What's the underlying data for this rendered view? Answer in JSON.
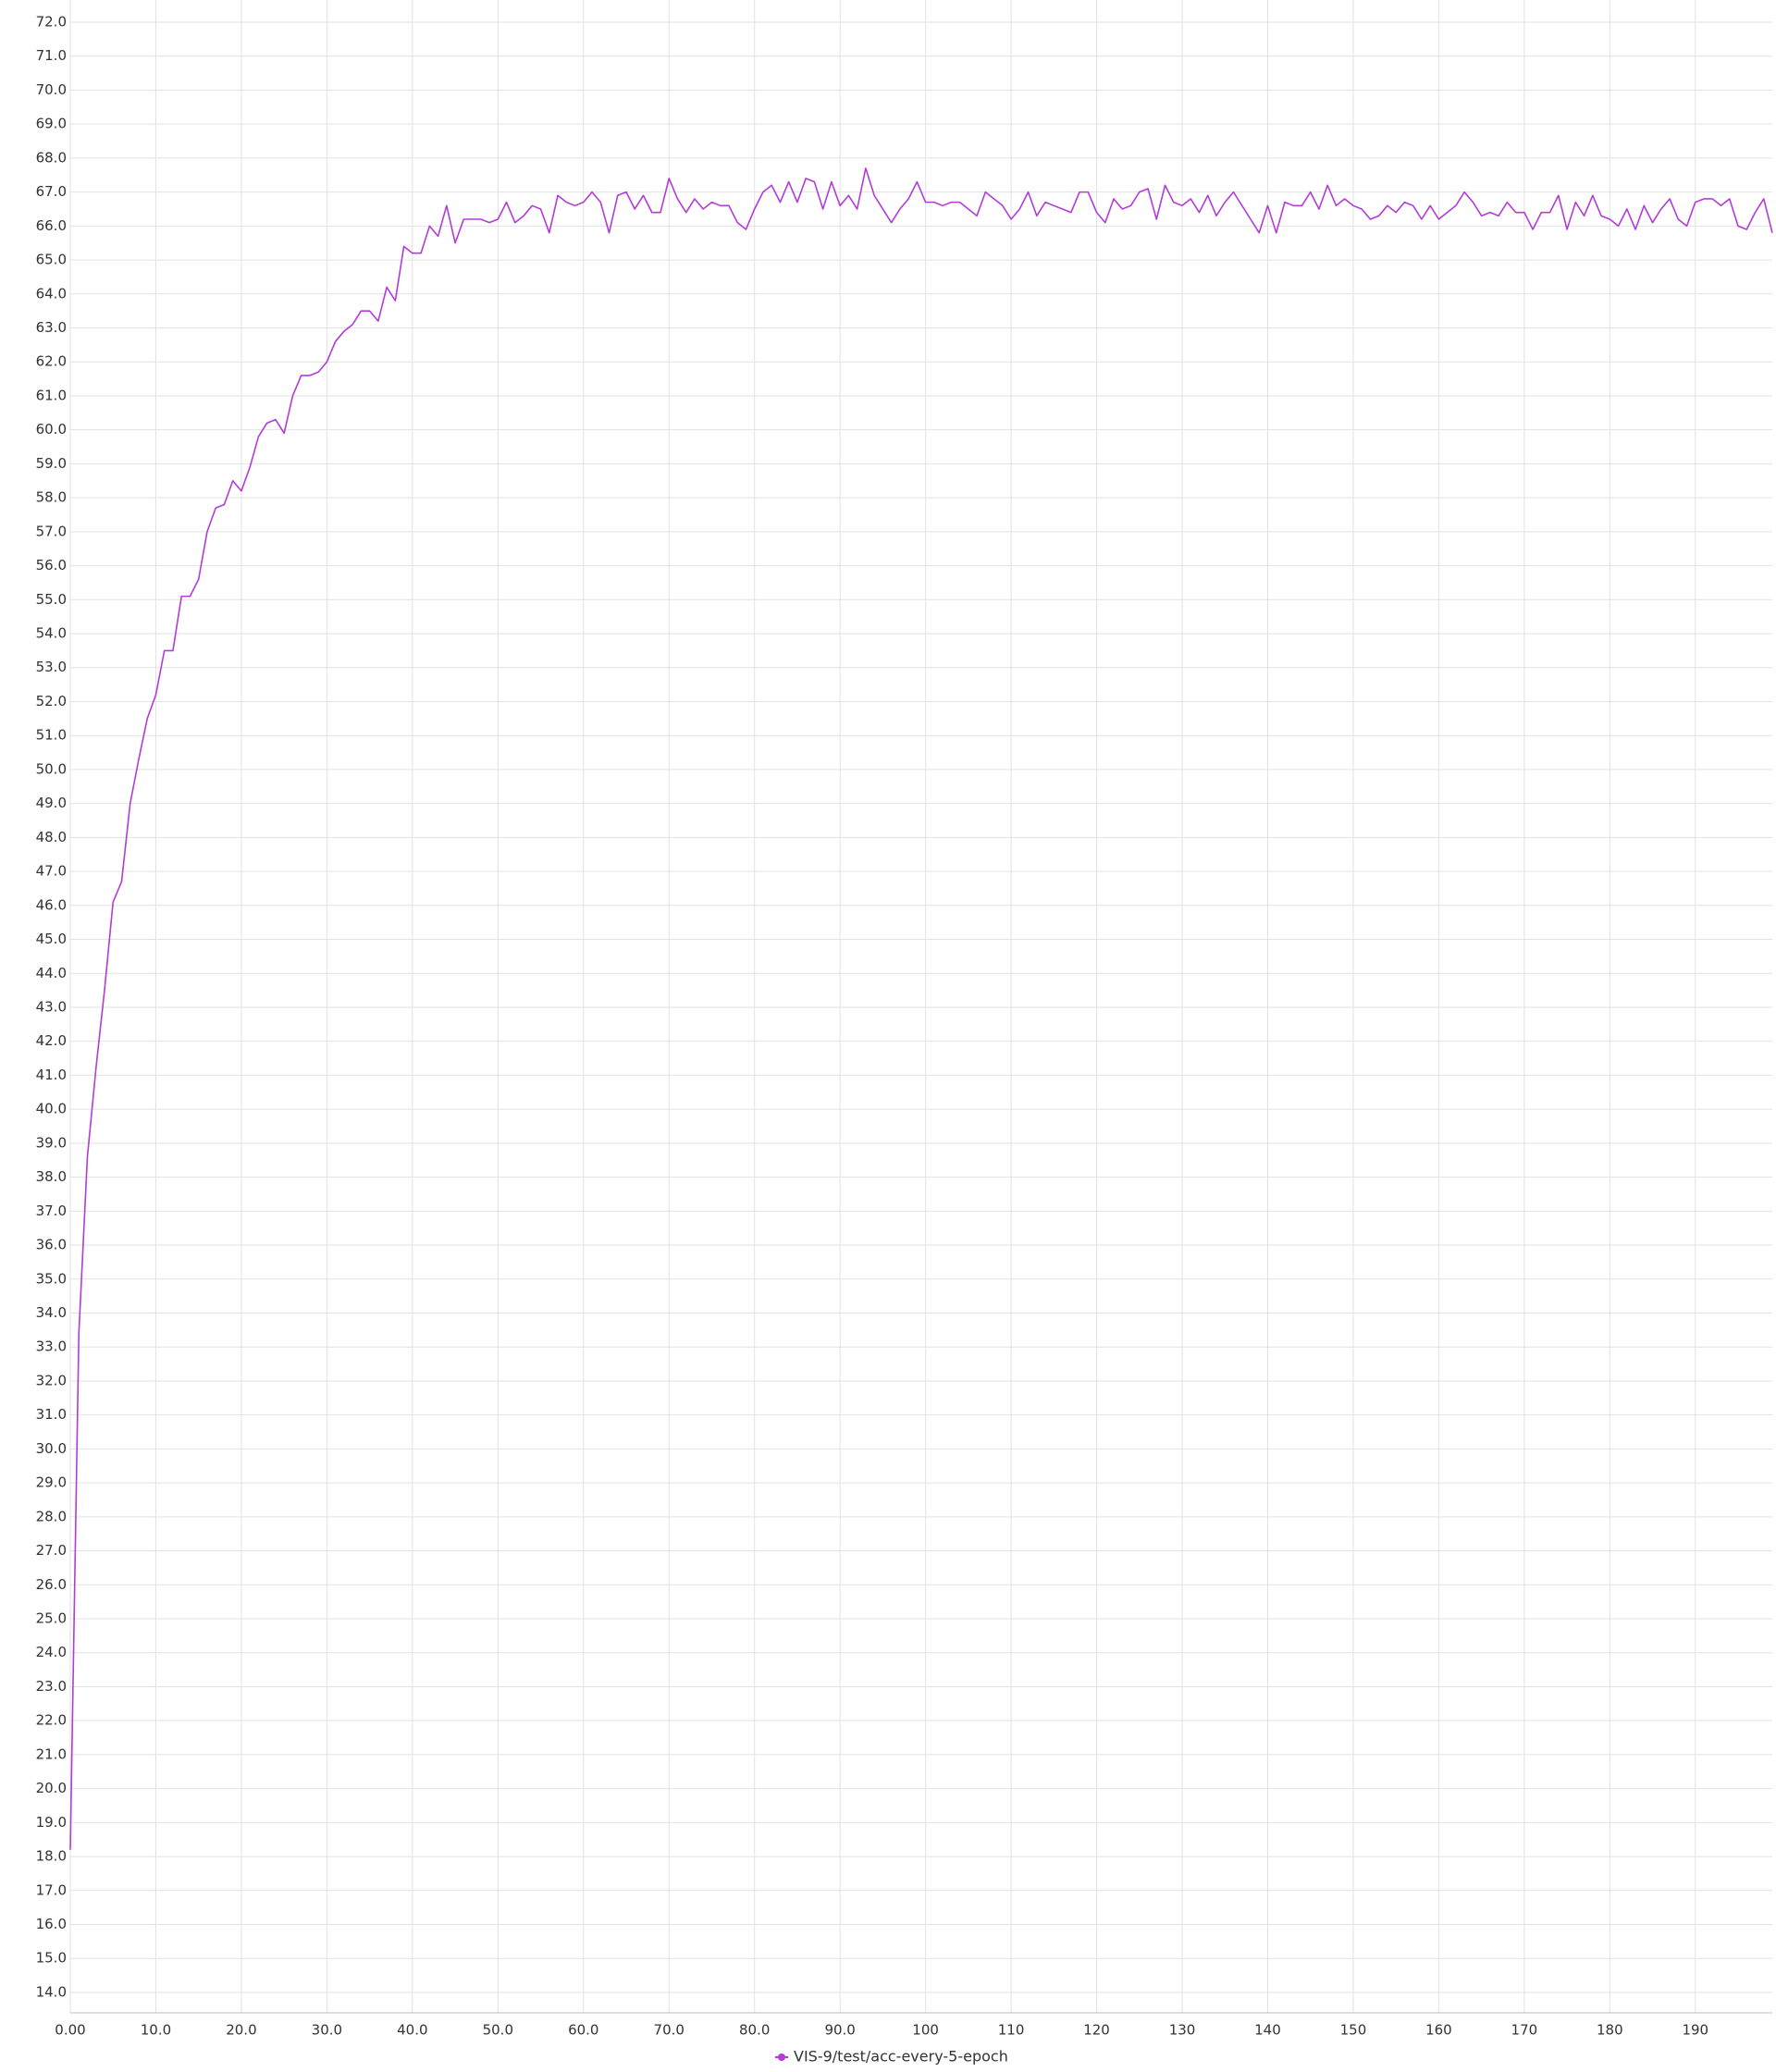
{
  "chart_data": {
    "type": "line",
    "series": [
      {
        "name": "VIS-9/test/acc-every-5-epoch",
        "color": "#b23bd9",
        "values": [
          18.2,
          33.4,
          38.6,
          41.2,
          43.5,
          46.1,
          46.7,
          49.0,
          50.3,
          51.5,
          52.2,
          53.5,
          53.5,
          55.1,
          55.1,
          55.6,
          57.0,
          57.7,
          57.8,
          58.5,
          58.2,
          58.9,
          59.8,
          60.2,
          60.3,
          59.9,
          61.0,
          61.6,
          61.6,
          61.7,
          62.0,
          62.6,
          62.9,
          63.1,
          63.5,
          63.5,
          63.2,
          64.2,
          63.8,
          65.4,
          65.2,
          65.2,
          66.0,
          65.7,
          66.6,
          65.5,
          66.2,
          66.2,
          66.2,
          66.1,
          66.2,
          66.7,
          66.1,
          66.3,
          66.6,
          66.5,
          65.8,
          66.9,
          66.7,
          66.6,
          66.7,
          67.0,
          66.7,
          65.8,
          66.9,
          67.0,
          66.5,
          66.9,
          66.4,
          66.4,
          67.4,
          66.8,
          66.4,
          66.8,
          66.5,
          66.7,
          66.6,
          66.6,
          66.1,
          65.9,
          66.5,
          67.0,
          67.2,
          66.7,
          67.3,
          66.7,
          67.4,
          67.3,
          66.5,
          67.3,
          66.6,
          66.9,
          66.5,
          67.7,
          66.9,
          66.5,
          66.1,
          66.5,
          66.8,
          67.3,
          66.7,
          66.7,
          66.6,
          66.7,
          66.7,
          66.5,
          66.3,
          67.0,
          66.8,
          66.6,
          66.2,
          66.5,
          67.0,
          66.3,
          66.7,
          66.6,
          66.5,
          66.4,
          67.0,
          67.0,
          66.4,
          66.1,
          66.8,
          66.5,
          66.6,
          67.0,
          67.1,
          66.2,
          67.2,
          66.7,
          66.6,
          66.8,
          66.4,
          66.9,
          66.3,
          66.7,
          67.0,
          66.6,
          66.2,
          65.8,
          66.6,
          65.8,
          66.7,
          66.6,
          66.6,
          67.0,
          66.5,
          67.2,
          66.6,
          66.8,
          66.6,
          66.5,
          66.2,
          66.3,
          66.6,
          66.4,
          66.7,
          66.6,
          66.2,
          66.6,
          66.2,
          66.4,
          66.6,
          67.0,
          66.7,
          66.3,
          66.4,
          66.3,
          66.7,
          66.4,
          66.4,
          65.9,
          66.4,
          66.4,
          66.9,
          65.9,
          66.7,
          66.3,
          66.9,
          66.3,
          66.2,
          66.0,
          66.5,
          65.9,
          66.6,
          66.1,
          66.5,
          66.8,
          66.2,
          66.0,
          66.7,
          66.8,
          66.8,
          66.6,
          66.8,
          66.0,
          65.9,
          66.4,
          66.8,
          65.8
        ]
      }
    ],
    "x": [
      0,
      1,
      2,
      3,
      4,
      5,
      6,
      7,
      8,
      9,
      10,
      11,
      12,
      13,
      14,
      15,
      16,
      17,
      18,
      19,
      20,
      21,
      22,
      23,
      24,
      25,
      26,
      27,
      28,
      29,
      30,
      31,
      32,
      33,
      34,
      35,
      36,
      37,
      38,
      39,
      40,
      41,
      42,
      43,
      44,
      45,
      46,
      47,
      48,
      49,
      50,
      51,
      52,
      53,
      54,
      55,
      56,
      57,
      58,
      59,
      60,
      61,
      62,
      63,
      64,
      65,
      66,
      67,
      68,
      69,
      70,
      71,
      72,
      73,
      74,
      75,
      76,
      77,
      78,
      79,
      80,
      81,
      82,
      83,
      84,
      85,
      86,
      87,
      88,
      89,
      90,
      91,
      92,
      93,
      94,
      95,
      96,
      97,
      98,
      99,
      100,
      101,
      102,
      103,
      104,
      105,
      106,
      107,
      108,
      109,
      110,
      111,
      112,
      113,
      114,
      115,
      116,
      117,
      118,
      119,
      120,
      121,
      122,
      123,
      124,
      125,
      126,
      127,
      128,
      129,
      130,
      131,
      132,
      133,
      134,
      135,
      136,
      137,
      138,
      139,
      140,
      141,
      142,
      143,
      144,
      145,
      146,
      147,
      148,
      149,
      150,
      151,
      152,
      153,
      154,
      155,
      156,
      157,
      158,
      159,
      160,
      161,
      162,
      163,
      164,
      165,
      166,
      167,
      168,
      169,
      170,
      171,
      172,
      173,
      174,
      175,
      176,
      177,
      178,
      179,
      180,
      181,
      182,
      183,
      184,
      185,
      186,
      187,
      188,
      189,
      190,
      191,
      192,
      193,
      194,
      195,
      196,
      197,
      198,
      199
    ],
    "xlim": [
      0,
      199
    ],
    "ylim": [
      13.4,
      72
    ],
    "xticks": [
      {
        "value": 0,
        "label": "0.00"
      },
      {
        "value": 10,
        "label": "10.0"
      },
      {
        "value": 20,
        "label": "20.0"
      },
      {
        "value": 30,
        "label": "30.0"
      },
      {
        "value": 40,
        "label": "40.0"
      },
      {
        "value": 50,
        "label": "50.0"
      },
      {
        "value": 60,
        "label": "60.0"
      },
      {
        "value": 70,
        "label": "70.0"
      },
      {
        "value": 80,
        "label": "80.0"
      },
      {
        "value": 90,
        "label": "90.0"
      },
      100,
      110,
      120,
      130,
      140,
      150,
      160,
      170,
      180,
      190
    ],
    "yticks": [
      {
        "value": 14,
        "label": "14.0"
      },
      {
        "value": 15,
        "label": "15.0"
      },
      {
        "value": 16,
        "label": "16.0"
      },
      {
        "value": 17,
        "label": "17.0"
      },
      {
        "value": 18,
        "label": "18.0"
      },
      {
        "value": 19,
        "label": "19.0"
      },
      {
        "value": 20,
        "label": "20.0"
      },
      {
        "value": 21,
        "label": "21.0"
      },
      {
        "value": 22,
        "label": "22.0"
      },
      {
        "value": 23,
        "label": "23.0"
      },
      {
        "value": 24,
        "label": "24.0"
      },
      {
        "value": 25,
        "label": "25.0"
      },
      {
        "value": 26,
        "label": "26.0"
      },
      {
        "value": 27,
        "label": "27.0"
      },
      {
        "value": 28,
        "label": "28.0"
      },
      {
        "value": 29,
        "label": "29.0"
      },
      {
        "value": 30,
        "label": "30.0"
      },
      {
        "value": 31,
        "label": "31.0"
      },
      {
        "value": 32,
        "label": "32.0"
      },
      {
        "value": 33,
        "label": "33.0"
      },
      {
        "value": 34,
        "label": "34.0"
      },
      {
        "value": 35,
        "label": "35.0"
      },
      {
        "value": 36,
        "label": "36.0"
      },
      {
        "value": 37,
        "label": "37.0"
      },
      {
        "value": 38,
        "label": "38.0"
      },
      {
        "value": 39,
        "label": "39.0"
      },
      {
        "value": 40,
        "label": "40.0"
      },
      {
        "value": 41,
        "label": "41.0"
      },
      {
        "value": 42,
        "label": "42.0"
      },
      {
        "value": 43,
        "label": "43.0"
      },
      {
        "value": 44,
        "label": "44.0"
      },
      {
        "value": 45,
        "label": "45.0"
      },
      {
        "value": 46,
        "label": "46.0"
      },
      {
        "value": 47,
        "label": "47.0"
      },
      {
        "value": 48,
        "label": "48.0"
      },
      {
        "value": 49,
        "label": "49.0"
      },
      {
        "value": 50,
        "label": "50.0"
      },
      {
        "value": 51,
        "label": "51.0"
      },
      {
        "value": 52,
        "label": "52.0"
      },
      {
        "value": 53,
        "label": "53.0"
      },
      {
        "value": 54,
        "label": "54.0"
      },
      {
        "value": 55,
        "label": "55.0"
      },
      {
        "value": 56,
        "label": "56.0"
      },
      {
        "value": 57,
        "label": "57.0"
      },
      {
        "value": 58,
        "label": "58.0"
      },
      {
        "value": 59,
        "label": "59.0"
      },
      {
        "value": 60,
        "label": "60.0"
      },
      {
        "value": 61,
        "label": "61.0"
      },
      {
        "value": 62,
        "label": "62.0"
      },
      {
        "value": 63,
        "label": "63.0"
      },
      {
        "value": 64,
        "label": "64.0"
      },
      {
        "value": 65,
        "label": "65.0"
      },
      {
        "value": 66,
        "label": "66.0"
      },
      {
        "value": 67,
        "label": "67.0"
      },
      {
        "value": 68,
        "label": "68.0"
      },
      {
        "value": 69,
        "label": "69.0"
      },
      {
        "value": 70,
        "label": "70.0"
      },
      {
        "value": 71,
        "label": "71.0"
      },
      {
        "value": 72,
        "label": "72.0"
      }
    ],
    "grid": true
  }
}
